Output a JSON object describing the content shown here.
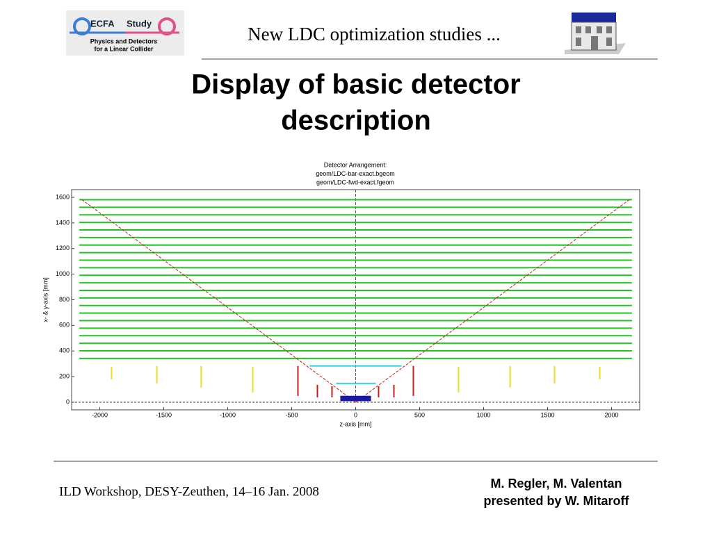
{
  "header": {
    "logo": {
      "name": "ECFA",
      "study": "Study",
      "line1": "Physics and Detectors",
      "line2": "for a Linear Collider"
    },
    "title": "New LDC optimization studies ..."
  },
  "slide_title": [
    "Display of basic detector",
    "description"
  ],
  "chart_data": {
    "type": "detector",
    "title": [
      "Detector Arrangement:",
      "geom/LDC-bar-exact.bgeom",
      "geom/LDC-fwd-exact.fgeom"
    ],
    "xlabel": "z-axis [mm]",
    "ylabel": "x- & y-axis [mm]",
    "xlim": [
      -2220,
      2220
    ],
    "ylim": [
      -60,
      1660
    ],
    "xticks": [
      -2000,
      -1500,
      -1000,
      -500,
      0,
      500,
      1000,
      1500,
      2000
    ],
    "yticks": [
      0,
      200,
      400,
      600,
      800,
      1000,
      1200,
      1400,
      1600
    ],
    "barrel": {
      "color": "#22c322",
      "z": [
        -2160,
        2160
      ],
      "r": [
        342,
        401,
        460,
        519,
        578,
        637,
        696,
        755,
        814,
        873,
        932,
        991,
        1050,
        1109,
        1168,
        1227,
        1286,
        1345,
        1404,
        1463,
        1522,
        1581
      ]
    },
    "inner": {
      "color": "#33d6e0",
      "layers": [
        {
          "z": [
            -359,
            359
          ],
          "r": 283
        },
        {
          "z": [
            -152,
            157
          ],
          "r": 147
        }
      ]
    },
    "disks": [
      {
        "color": "#e8e020",
        "z": -1908,
        "r": [
          179,
          277
        ]
      },
      {
        "color": "#e8e020",
        "z": -1554,
        "r": [
          147,
          283
        ]
      },
      {
        "color": "#e8e020",
        "z": -1207,
        "r": [
          114,
          283
        ]
      },
      {
        "color": "#e8e020",
        "z": -804,
        "r": [
          76,
          277
        ]
      },
      {
        "color": "#e8e020",
        "z": 804,
        "r": [
          76,
          277
        ]
      },
      {
        "color": "#e8e020",
        "z": 1207,
        "r": [
          114,
          283
        ]
      },
      {
        "color": "#e8e020",
        "z": 1554,
        "r": [
          147,
          283
        ]
      },
      {
        "color": "#e8e020",
        "z": 1908,
        "r": [
          179,
          277
        ]
      },
      {
        "color": "#c0201c",
        "z": -451,
        "r": [
          49,
          283
        ]
      },
      {
        "color": "#c0201c",
        "z": -299,
        "r": [
          38,
          136
        ]
      },
      {
        "color": "#c0201c",
        "z": -185,
        "r": [
          38,
          125
        ]
      },
      {
        "color": "#c0201c",
        "z": 179,
        "r": [
          38,
          125
        ]
      },
      {
        "color": "#c0201c",
        "z": 299,
        "r": [
          38,
          136
        ]
      },
      {
        "color": "#c0201c",
        "z": 451,
        "r": [
          49,
          283
        ]
      }
    ],
    "cone": {
      "color": "#c0201c",
      "ends": [
        {
          "z": -2150,
          "r": 1590
        },
        {
          "z": 2150,
          "r": 1590
        }
      ]
    },
    "beampipe": {
      "color": "#1a1aa0",
      "z": [
        -120,
        120
      ],
      "r": [
        8,
        50
      ]
    }
  },
  "footer": {
    "left": "ILD Workshop, DESY-Zeuthen, 14–16 Jan. 2008",
    "authors": "M. Regler, M. Valentan",
    "presenter": "presented by W. Mitaroff"
  }
}
